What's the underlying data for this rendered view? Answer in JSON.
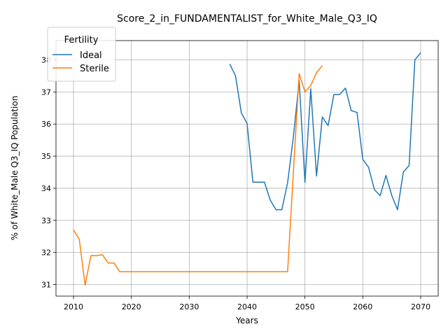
{
  "chart_data": {
    "type": "line",
    "title": "Score_2_in_FUNDAMENTALIST_for_White_Male_Q3_IQ",
    "xlabel": "Years",
    "ylabel": "% of White_Male Q3_IQ Population",
    "xlim": [
      2006.97,
      2073.03
    ],
    "ylim": [
      30.64,
      38.6
    ],
    "xticks": [
      2010,
      2020,
      2030,
      2040,
      2050,
      2060,
      2070
    ],
    "yticks": [
      31,
      32,
      33,
      34,
      35,
      36,
      37,
      38
    ],
    "grid": true,
    "legend": {
      "title": "Fertility",
      "placement": "upper-left"
    },
    "series": [
      {
        "name": "Ideal",
        "color": "#1f77b4",
        "x": [
          2037,
          2038,
          2039,
          2040,
          2041,
          2042,
          2043,
          2044,
          2045,
          2046,
          2047,
          2048,
          2049,
          2050,
          2051,
          2052,
          2053,
          2054,
          2055,
          2056,
          2057,
          2058,
          2059,
          2060,
          2061,
          2062,
          2063,
          2064,
          2065,
          2066,
          2067,
          2068,
          2069,
          2070
        ],
        "y": [
          37.87,
          37.5,
          36.35,
          36.02,
          34.19,
          34.19,
          34.19,
          33.63,
          33.33,
          33.33,
          34.17,
          35.6,
          37.35,
          34.18,
          37.1,
          34.38,
          36.22,
          35.95,
          36.92,
          36.92,
          37.12,
          36.42,
          36.36,
          34.9,
          34.65,
          33.96,
          33.77,
          34.4,
          33.78,
          33.33,
          34.5,
          34.71,
          38.0,
          38.22
        ]
      },
      {
        "name": "Sterile",
        "color": "#ff7f0e",
        "x": [
          2010,
          2011,
          2012,
          2013,
          2014,
          2015,
          2016,
          2017,
          2018,
          2019,
          2020,
          2021,
          2022,
          2023,
          2024,
          2025,
          2026,
          2027,
          2028,
          2029,
          2030,
          2031,
          2032,
          2033,
          2034,
          2035,
          2036,
          2037,
          2038,
          2039,
          2040,
          2041,
          2042,
          2043,
          2044,
          2045,
          2046,
          2047,
          2048,
          2049,
          2050,
          2051,
          2052,
          2053
        ],
        "y": [
          32.7,
          32.4,
          30.98,
          31.9,
          31.9,
          31.93,
          31.67,
          31.67,
          31.4,
          31.4,
          31.4,
          31.4,
          31.4,
          31.4,
          31.4,
          31.4,
          31.4,
          31.4,
          31.4,
          31.4,
          31.4,
          31.4,
          31.4,
          31.4,
          31.4,
          31.4,
          31.4,
          31.4,
          31.4,
          31.4,
          31.4,
          31.4,
          31.4,
          31.4,
          31.4,
          31.4,
          31.4,
          31.4,
          34.5,
          37.57,
          37.0,
          37.2,
          37.6,
          37.82
        ]
      }
    ]
  }
}
